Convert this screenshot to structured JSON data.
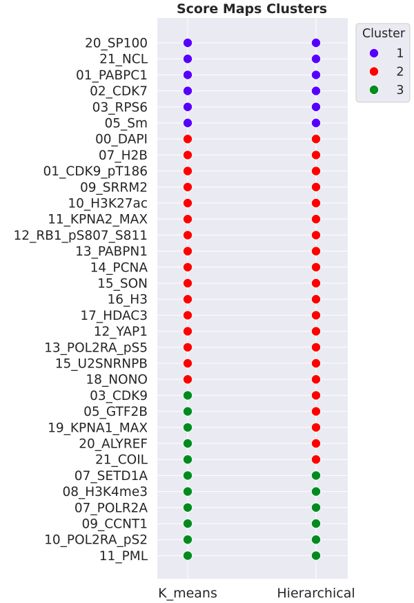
{
  "chart_data": {
    "type": "scatter",
    "title": "Score Maps Clusters",
    "x_categories": [
      "K_means",
      "Hierarchical"
    ],
    "y_categories": [
      "20_SP100",
      "21_NCL",
      "01_PABPC1",
      "02_CDK7",
      "03_RPS6",
      "05_Sm",
      "00_DAPI",
      "07_H2B",
      "01_CDK9_pT186",
      "09_SRRM2",
      "10_H3K27ac",
      "11_KPNA2_MAX",
      "12_RB1_pS807_S811",
      "13_PABPN1",
      "14_PCNA",
      "15_SON",
      "16_H3",
      "17_HDAC3",
      "12_YAP1",
      "13_POL2RA_pS5",
      "15_U2SNRNPB",
      "18_NONO",
      "03_CDK9",
      "05_GTF2B",
      "19_KPNA1_MAX",
      "20_ALYREF",
      "21_COIL",
      "07_SETD1A",
      "08_H3K4me3",
      "07_POLR2A",
      "09_CCNT1",
      "10_POL2RA_pS2",
      "11_PML"
    ],
    "series": [
      {
        "name": "K_means",
        "values": [
          1,
          1,
          1,
          1,
          1,
          1,
          2,
          2,
          2,
          2,
          2,
          2,
          2,
          2,
          2,
          2,
          2,
          2,
          2,
          2,
          2,
          2,
          3,
          3,
          3,
          3,
          3,
          3,
          3,
          3,
          3,
          3,
          3
        ]
      },
      {
        "name": "Hierarchical",
        "values": [
          1,
          1,
          1,
          1,
          1,
          1,
          2,
          2,
          2,
          2,
          2,
          2,
          2,
          2,
          2,
          2,
          2,
          2,
          2,
          2,
          2,
          2,
          2,
          2,
          2,
          2,
          2,
          3,
          3,
          3,
          3,
          3,
          3
        ]
      }
    ],
    "legend": {
      "title": "Cluster",
      "placement": "outside-right-top",
      "entries": [
        {
          "label": "1",
          "color": "#5500ff"
        },
        {
          "label": "2",
          "color": "#ff0000"
        },
        {
          "label": "3",
          "color": "#008b1f"
        }
      ]
    },
    "grid": true,
    "background": "#eaeaf2"
  }
}
